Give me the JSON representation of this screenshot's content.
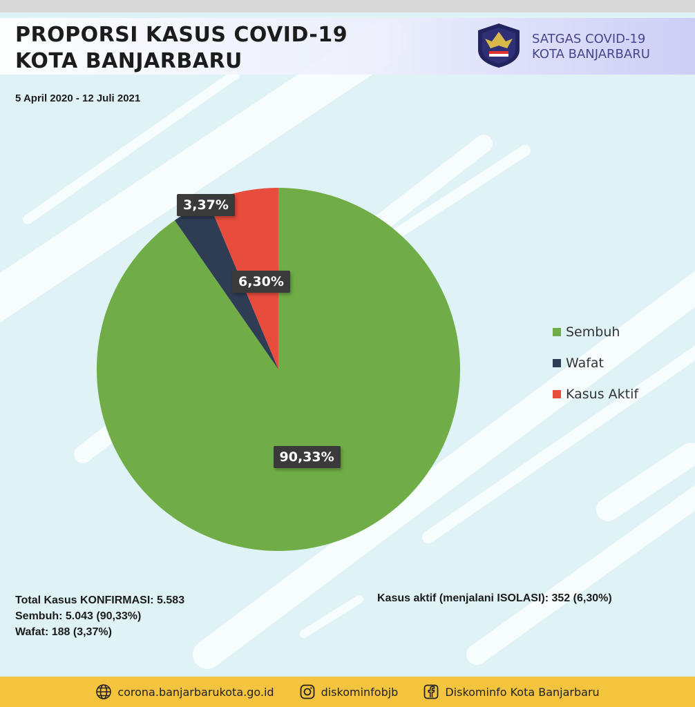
{
  "header": {
    "title_line1": "PROPORSI KASUS COVID-19",
    "title_line2": "KOTA BANJARBARU",
    "org_line1": "SATGAS COVID-19",
    "org_line2": "KOTA BANJARBARU",
    "logo_icon": "garuda-emblem-icon",
    "date_range": "5 April 2020 - 12 Juli 2021"
  },
  "chart_data": {
    "type": "pie",
    "categories": [
      "Sembuh",
      "Wafat",
      "Kasus Aktif"
    ],
    "values": [
      90.33,
      3.37,
      6.3
    ],
    "labels": [
      "90,33%",
      "3,37%",
      "6,30%"
    ],
    "colors": [
      "#70ad47",
      "#2e3c54",
      "#e84c3d"
    ],
    "legend_position": "right"
  },
  "stats": {
    "total": "Total Kasus KONFIRMASI: 5.583",
    "sembuh": "Sembuh: 5.043 (90,33%)",
    "wafat": "Wafat: 188 (3,37%)",
    "aktif": "Kasus aktif (menjalani ISOLASI): 352 (6,30%)"
  },
  "footer": {
    "website": "corona.banjarbarukota.go.id",
    "instagram": "diskominfobjb",
    "facebook": "Diskominfo Kota Banjarbaru",
    "icons": [
      "globe-icon",
      "instagram-icon",
      "facebook-icon"
    ]
  },
  "colors": {
    "background": "#dff3f6",
    "footer": "#f5c43e",
    "org_text": "#46458f"
  }
}
